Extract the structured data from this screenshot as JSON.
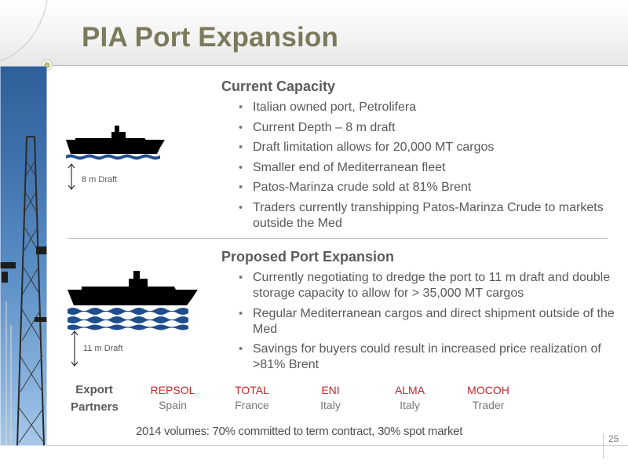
{
  "title": "PIA Port Expansion",
  "current": {
    "heading": "Current Capacity",
    "bullets": [
      "Italian owned port, Petrolifera",
      "Current Depth – 8 m draft",
      "Draft limitation allows for 20,000 MT cargos",
      "Smaller end of Mediterranean fleet",
      "Patos-Marinza crude sold at 81% Brent",
      "Traders currently transhipping Patos-Marinza Crude to markets outside the Med"
    ],
    "draft_label": "8 m Draft"
  },
  "proposed": {
    "heading": "Proposed Port Expansion",
    "bullets": [
      "Currently negotiating to dredge the port to 11 m draft and double storage capacity to allow for > 35,000 MT cargos",
      "Regular Mediterranean cargos and direct shipment outside of the Med",
      "Savings for buyers could result in increased price realization of >81% Brent"
    ],
    "draft_label": "11 m Draft"
  },
  "export_partners": {
    "label_line1": "Export",
    "label_line2": "Partners",
    "partners": [
      {
        "name": "REPSOL",
        "country": "Spain"
      },
      {
        "name": "TOTAL",
        "country": "France"
      },
      {
        "name": "ENI",
        "country": "Italy"
      },
      {
        "name": "ALMA",
        "country": "Italy"
      },
      {
        "name": "MOCOH",
        "country": "Trader"
      }
    ]
  },
  "volumes_note": "2014 volumes: 70% committed to term contract, 30% spot market",
  "page_number": "25",
  "colors": {
    "title": "#7b7a5a",
    "partner_name": "#c0272d",
    "wave": "#1f4e8c",
    "ship": "#000000",
    "accent_dot": "#b9c07a"
  },
  "icons": {
    "ship": "cargo-ship-icon",
    "wave": "water-wave-icon",
    "arrow": "double-arrow-icon"
  }
}
